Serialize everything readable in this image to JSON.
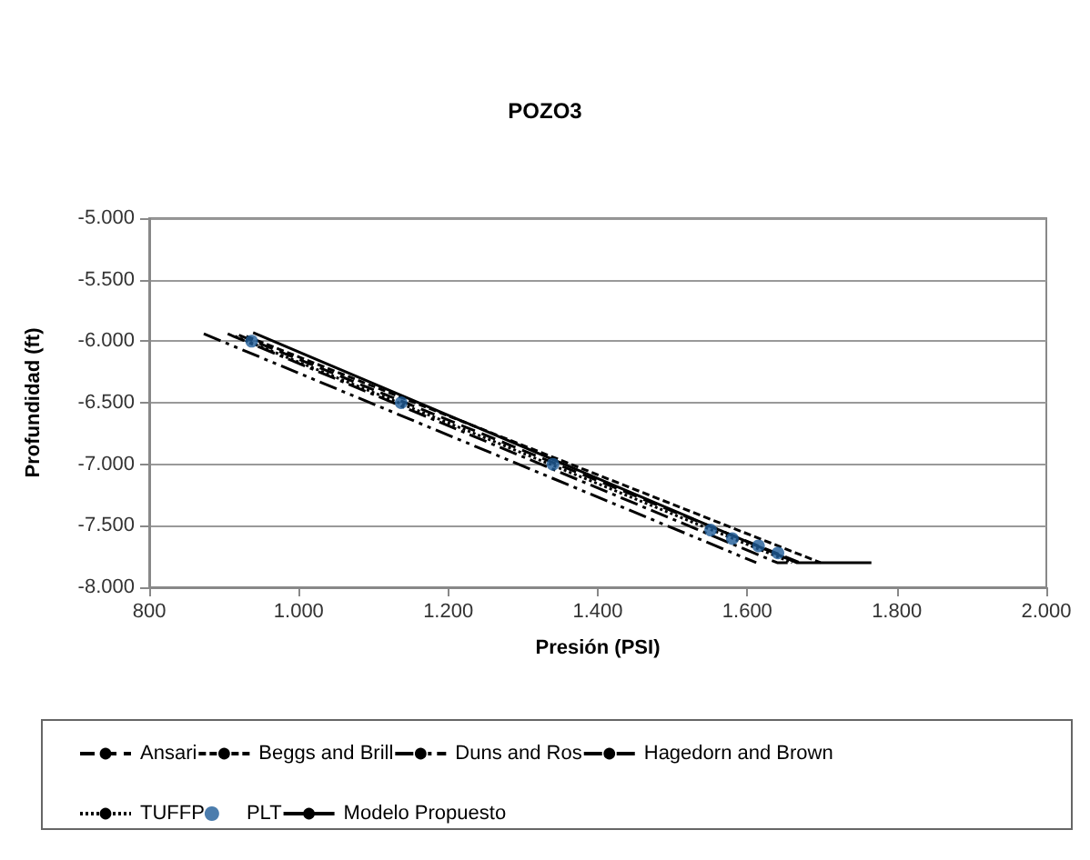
{
  "chart_data": {
    "type": "line",
    "title": "POZO3",
    "xlabel": "Presión (PSI)",
    "ylabel": "Profundidad (ft)",
    "xlim": [
      800,
      2000
    ],
    "xticks": [
      {
        "value": 800,
        "label": "800"
      },
      {
        "value": 1000,
        "label": "1.000"
      },
      {
        "value": 1200,
        "label": "1.200"
      },
      {
        "value": 1400,
        "label": "1.400"
      },
      {
        "value": 1600,
        "label": "1.600"
      },
      {
        "value": 1800,
        "label": "1.800"
      },
      {
        "value": 2000,
        "label": "2.000"
      }
    ],
    "ylim": [
      -8000,
      -5000
    ],
    "yticks": [
      {
        "value": -5000,
        "label": "-5.000"
      },
      {
        "value": -5500,
        "label": "-5.500"
      },
      {
        "value": -6000,
        "label": "-6.000"
      },
      {
        "value": -6500,
        "label": "-6.500"
      },
      {
        "value": -7000,
        "label": "-7.000"
      },
      {
        "value": -7500,
        "label": "-7.500"
      },
      {
        "value": -8000,
        "label": "-8.000"
      }
    ],
    "grid": "y",
    "legend": "bottom",
    "marker": "none",
    "series": [
      {
        "name": "Ansari",
        "color": "#000000",
        "line_style": "longdash",
        "x": [
          920,
          1670
        ],
        "values": [
          -5950,
          -7800
        ]
      },
      {
        "name": "Beggs and Brill",
        "color": "#000000",
        "line_style": "dashed",
        "x": [
          930,
          1698
        ],
        "values": [
          -5960,
          -7800
        ]
      },
      {
        "name": "Duns and Ros",
        "color": "#000000",
        "line_style": "dashdotdot",
        "x": [
          873,
          1612
        ],
        "values": [
          -5940,
          -7800
        ]
      },
      {
        "name": "Hagedorn and Brown",
        "color": "#000000",
        "line_style": "dashdot",
        "x": [
          905,
          1640,
          1654
        ],
        "values": [
          -5940,
          -7800,
          -7800
        ]
      },
      {
        "name": "TUFFP",
        "color": "#000000",
        "line_style": "dotted",
        "x": [
          915,
          1660
        ],
        "values": [
          -5960,
          -7800
        ]
      },
      {
        "name": "PLT",
        "type": "scatter",
        "marker": "circle",
        "color": "#1f5c99",
        "x": [
          937,
          1137,
          1340,
          1551,
          1580,
          1615,
          1641
        ],
        "values": [
          -6000,
          -6500,
          -7000,
          -7535,
          -7605,
          -7663,
          -7721
        ]
      },
      {
        "name": "Modelo Propuesto",
        "color": "#000000",
        "line_style": "solid",
        "x": [
          939,
          1666,
          1766
        ],
        "values": [
          -5930,
          -7800,
          -7800
        ]
      }
    ]
  }
}
